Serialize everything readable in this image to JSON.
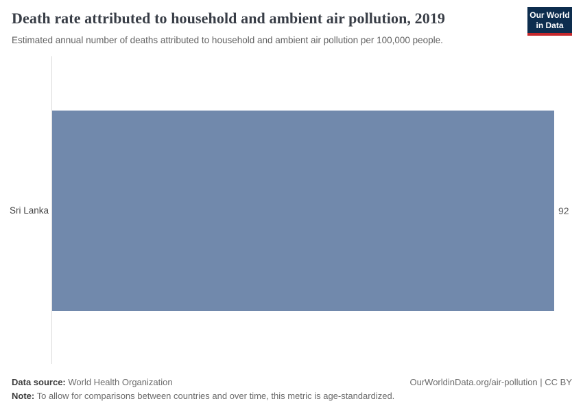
{
  "header": {
    "title": "Death rate attributed to household and ambient air pollution, 2019",
    "subtitle": "Estimated annual number of deaths attributed to household and ambient air pollution per 100,000 people.",
    "logo": {
      "line1": "Our World",
      "line2": "in Data"
    }
  },
  "chart_data": {
    "type": "bar",
    "orientation": "horizontal",
    "title": "Death rate attributed to household and ambient air pollution, 2019",
    "categories": [
      "Sri Lanka"
    ],
    "values": [
      92
    ],
    "value_labels": [
      "92"
    ],
    "xlabel": "",
    "ylabel": "",
    "xlim": [
      0,
      92
    ],
    "grid": false,
    "legend": "none",
    "bar_color": "#7189ac"
  },
  "footer": {
    "data_source_label": "Data source:",
    "data_source_value": " World Health Organization",
    "note_label": "Note:",
    "note_value": " To allow for comparisons between countries and over time, this metric is age-standardized.",
    "citation": "OurWorldinData.org/air-pollution | CC BY"
  },
  "colors": {
    "bar_fill": "#7189ac",
    "axis_line": "#dcdcdc",
    "logo_background": "#0d2d4e",
    "logo_stripe": "#c5282c",
    "title_text": "#383d46",
    "subtitle_text": "#616161",
    "entity_text": "#454545",
    "value_text": "#5e5e5e",
    "footer_label_text": "#3d3d3d",
    "footer_text": "#6b6b6b"
  }
}
